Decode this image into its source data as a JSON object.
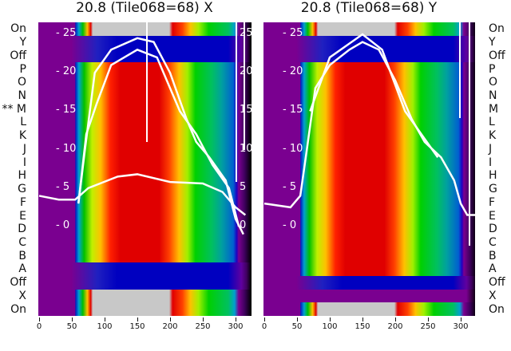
{
  "chart_data": [
    {
      "type": "heatmap",
      "title": "20.8 (Tile068=68) X",
      "row_labels": [
        "On",
        "Y",
        "Off",
        "P",
        "O",
        "N",
        "** M",
        "L",
        "K",
        "J",
        "I",
        "H",
        "G",
        "F",
        "E",
        "D",
        "C",
        "B",
        "A",
        "Off",
        "X",
        "On"
      ],
      "row_kinds": [
        "gray",
        "blue",
        "blue",
        "spec",
        "spec",
        "spec",
        "spec",
        "spec",
        "spec",
        "spec",
        "spec",
        "spec",
        "spec",
        "spec",
        "spec",
        "spec",
        "spec",
        "spec",
        "blue",
        "blue",
        "gray",
        "gray"
      ],
      "x_ticks": [
        "0",
        "50",
        "100",
        "150",
        "200",
        "250",
        "300"
      ],
      "xlim": [
        0,
        325
      ],
      "y_ticks": [
        "25",
        "20",
        "15",
        "10",
        "5",
        "0"
      ],
      "ylim": [
        -11.5,
        26.5
      ],
      "lines": [
        [
          [
            60,
            3
          ],
          [
            70,
            10
          ],
          [
            85,
            20
          ],
          [
            110,
            23
          ],
          [
            150,
            24.5
          ],
          [
            175,
            24
          ],
          [
            200,
            20
          ],
          [
            225,
            14
          ],
          [
            240,
            11
          ],
          [
            260,
            9
          ],
          [
            285,
            6
          ],
          [
            300,
            1
          ],
          [
            312,
            -1
          ]
        ],
        [
          [
            60,
            3
          ],
          [
            72,
            12
          ],
          [
            88,
            16
          ],
          [
            110,
            21
          ],
          [
            150,
            23
          ],
          [
            180,
            22
          ],
          [
            215,
            15
          ],
          [
            240,
            12
          ],
          [
            265,
            8
          ],
          [
            290,
            5
          ],
          [
            305,
            0
          ]
        ],
        [
          [
            0,
            4
          ],
          [
            30,
            3.5
          ],
          [
            55,
            3.5
          ],
          [
            75,
            5
          ],
          [
            120,
            6.5
          ],
          [
            150,
            6.8
          ],
          [
            200,
            5.8
          ],
          [
            250,
            5.6
          ],
          [
            280,
            4.5
          ],
          [
            300,
            2.5
          ],
          [
            315,
            1.5
          ]
        ]
      ]
    },
    {
      "type": "heatmap",
      "title": "20.8 (Tile068=68) Y",
      "row_labels": [
        "On",
        "Y",
        "Off",
        "P",
        "O",
        "N",
        "M",
        "L",
        "K",
        "J",
        "I",
        "H",
        "G",
        "F",
        "E",
        "D",
        "C",
        "B",
        "A",
        "Off",
        "X",
        "On"
      ],
      "row_kinds": [
        "gray",
        "blue",
        "blue",
        "spec",
        "spec",
        "spec",
        "spec",
        "spec",
        "spec",
        "spec",
        "spec",
        "spec",
        "spec",
        "spec",
        "spec",
        "spec",
        "spec",
        "spec",
        "spec",
        "blue",
        "purple",
        "gray"
      ],
      "x_ticks": [
        "0",
        "50",
        "100",
        "150",
        "200",
        "250",
        "300"
      ],
      "xlim": [
        0,
        325
      ],
      "y_ticks": [
        "25",
        "20",
        "15",
        "10",
        "5",
        "0"
      ],
      "ylim": [
        -11.5,
        26.5
      ],
      "lines": [
        [
          [
            0,
            3
          ],
          [
            40,
            2.5
          ],
          [
            55,
            4
          ],
          [
            65,
            10
          ],
          [
            78,
            18
          ],
          [
            100,
            21
          ],
          [
            130,
            23
          ],
          [
            150,
            24
          ],
          [
            175,
            23
          ],
          [
            200,
            19
          ],
          [
            225,
            14
          ],
          [
            245,
            11
          ],
          [
            270,
            9
          ],
          [
            290,
            6
          ],
          [
            300,
            3
          ],
          [
            310,
            1.5
          ],
          [
            325,
            1.5
          ]
        ],
        [
          [
            70,
            15
          ],
          [
            100,
            22
          ],
          [
            150,
            25
          ],
          [
            180,
            23
          ],
          [
            215,
            15
          ],
          [
            240,
            12
          ],
          [
            265,
            9
          ]
        ]
      ]
    }
  ]
}
